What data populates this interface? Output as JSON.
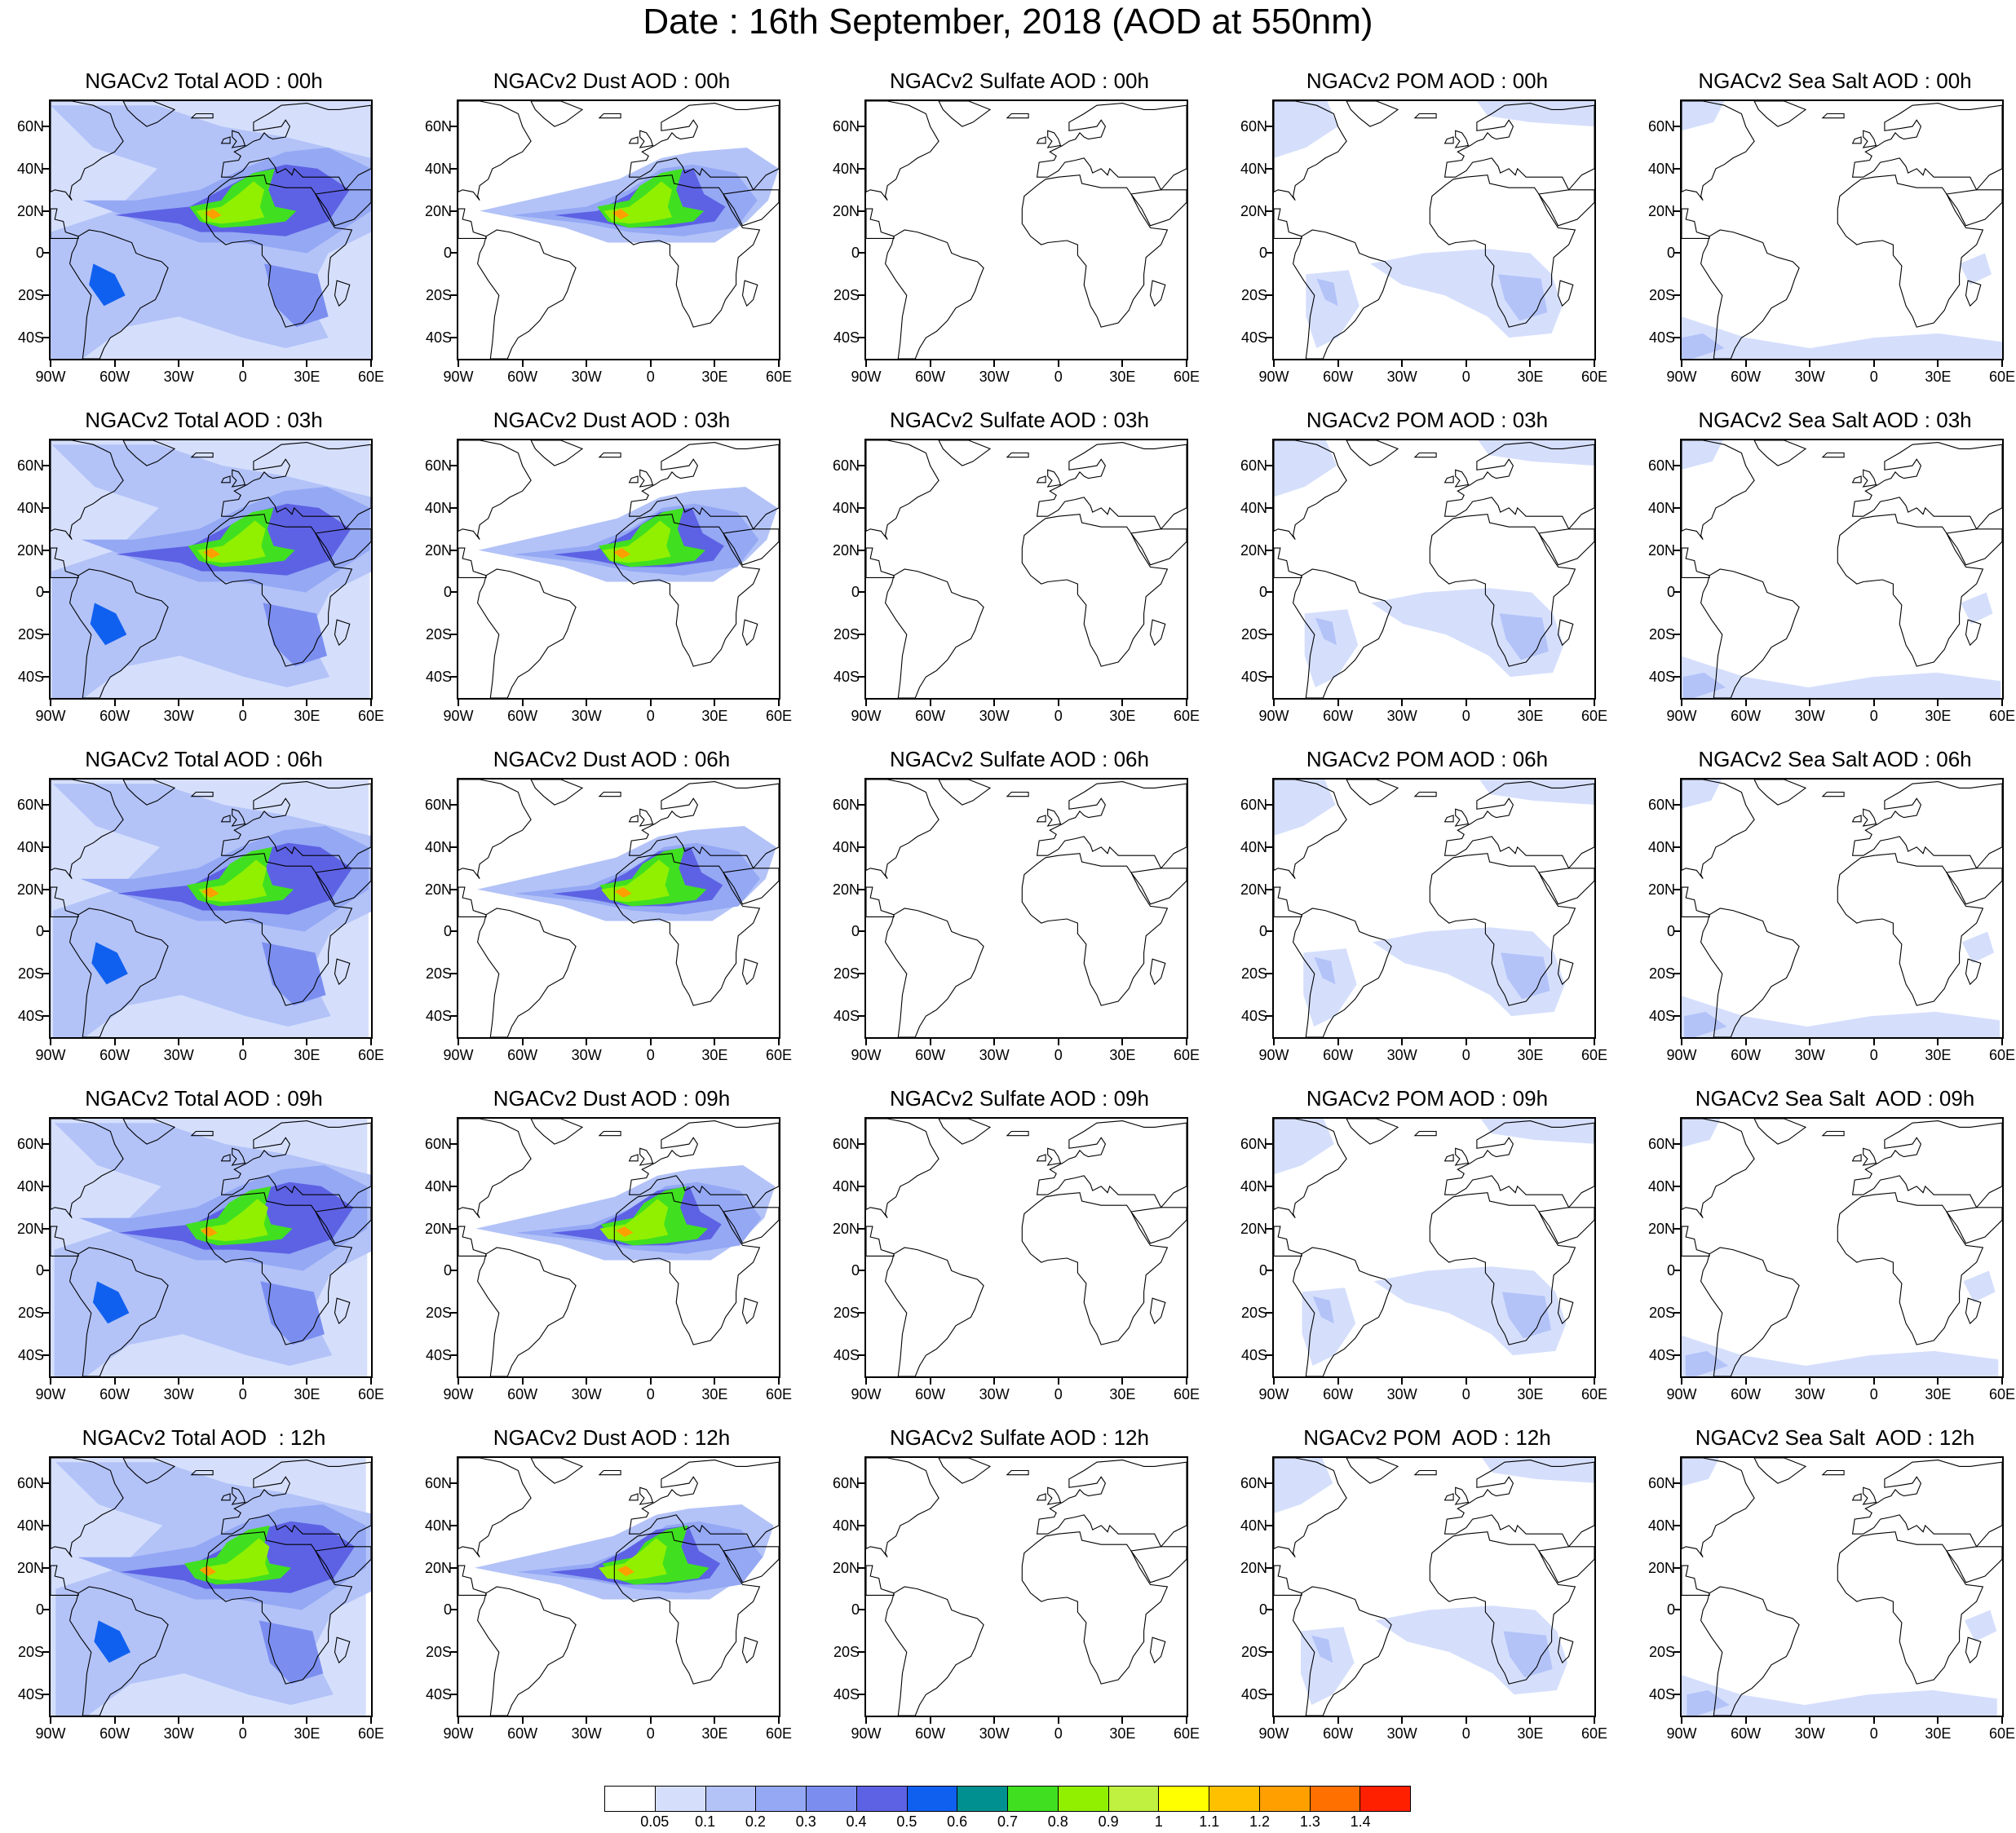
{
  "title": "Date : 16th September, 2018 (AOD at 550nm)",
  "lat_labels": [
    "60N",
    "40N",
    "20N",
    "0",
    "20S",
    "40S"
  ],
  "lon_labels": [
    "90W",
    "60W",
    "30W",
    "0",
    "30E",
    "60E"
  ],
  "rows": [
    {
      "time": "00h",
      "titles": [
        "NGACv2 Total AOD : 00h",
        "NGACv2 Dust AOD : 00h",
        "NGACv2 Sulfate AOD : 00h",
        "NGACv2 POM AOD : 00h",
        "NGACv2 Sea Salt AOD : 00h"
      ]
    },
    {
      "time": "03h",
      "titles": [
        "NGACv2 Total AOD : 03h",
        "NGACv2 Dust AOD : 03h",
        "NGACv2 Sulfate AOD : 03h",
        "NGACv2 POM AOD : 03h",
        "NGACv2 Sea Salt AOD : 03h"
      ]
    },
    {
      "time": "06h",
      "titles": [
        "NGACv2 Total AOD : 06h",
        "NGACv2 Dust AOD : 06h",
        "NGACv2 Sulfate AOD : 06h",
        "NGACv2 POM AOD : 06h",
        "NGACv2 Sea Salt AOD : 06h"
      ]
    },
    {
      "time": "09h",
      "titles": [
        "NGACv2 Total AOD : 09h",
        "NGACv2 Dust AOD : 09h",
        "NGACv2 Sulfate AOD : 09h",
        "NGACv2 POM AOD : 09h",
        "NGACv2 Sea Salt  AOD : 09h"
      ]
    },
    {
      "time": "12h",
      "titles": [
        "NGACv2 Total AOD  : 12h",
        "NGACv2 Dust AOD : 12h",
        "NGACv2 Sulfate AOD : 12h",
        "NGACv2 POM  AOD : 12h",
        "NGACv2 Sea Salt  AOD : 12h"
      ]
    }
  ],
  "species": [
    "total",
    "dust",
    "sulfate",
    "pom",
    "seasalt"
  ],
  "colorbar": {
    "colors": [
      "#ffffff",
      "#d5dffc",
      "#b3c3f8",
      "#94a8f4",
      "#7b8ef0",
      "#5d62e4",
      "#1060f0",
      "#009090",
      "#40e020",
      "#90f000",
      "#c0f040",
      "#ffff00",
      "#ffc000",
      "#ffa000",
      "#ff7000",
      "#ff2000"
    ],
    "labels": [
      "0.05",
      "0.1",
      "0.2",
      "0.3",
      "0.4",
      "0.5",
      "0.6",
      "0.7",
      "0.8",
      "0.9",
      "1",
      "1.1",
      "1.2",
      "1.3",
      "1.4"
    ]
  }
}
